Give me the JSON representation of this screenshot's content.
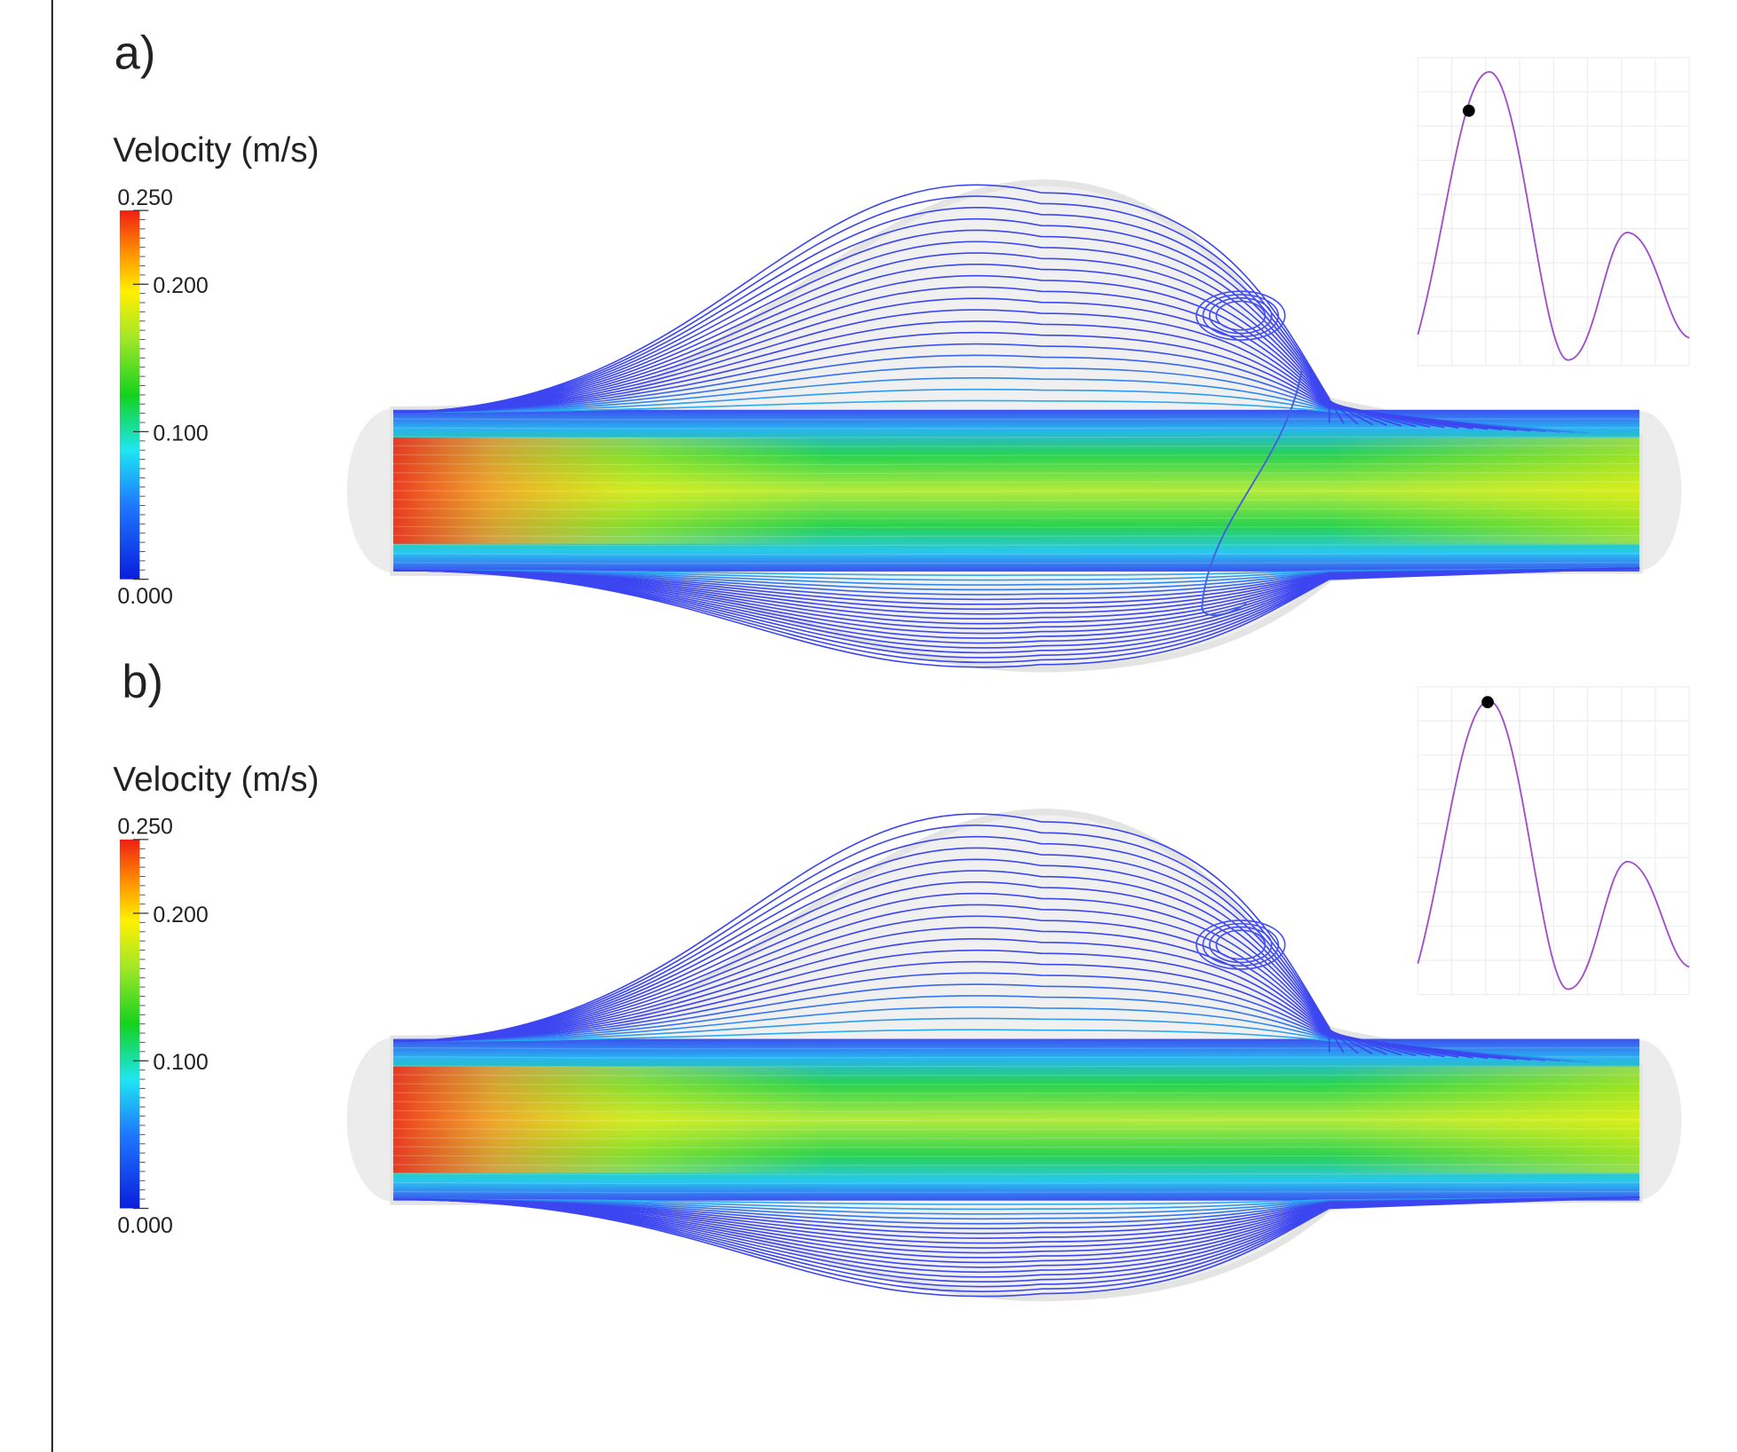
{
  "panels": [
    {
      "label": "a)",
      "colorbar": {
        "title": "Velocity (m/s)",
        "range": [
          0,
          0.25
        ],
        "ticks": [
          {
            "value": 0.25,
            "label": "0.250"
          },
          {
            "value": 0.2,
            "label": "0.200"
          },
          {
            "value": 0.1,
            "label": "0.100"
          },
          {
            "value": 0,
            "label": "0.000"
          }
        ]
      }
    },
    {
      "label": "b)",
      "colorbar": {
        "title": "Velocity (m/s)",
        "range": [
          0,
          0.25
        ],
        "ticks": [
          {
            "value": 0.25,
            "label": "0.250"
          },
          {
            "value": 0.2,
            "label": "0.200"
          },
          {
            "value": 0.1,
            "label": "0.100"
          },
          {
            "value": 0,
            "label": "0.000"
          }
        ]
      }
    }
  ]
}
